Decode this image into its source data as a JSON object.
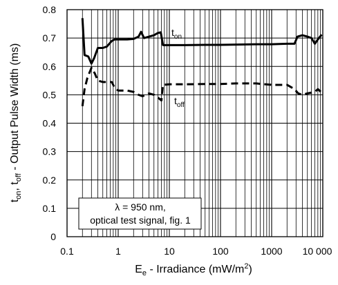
{
  "chart_data": {
    "type": "line",
    "xlabel": {
      "main": "E",
      "sub": "e",
      "rest": " - Irradiance (mW/m",
      "sup": "2",
      "end": ")"
    },
    "ylabel": {
      "t1": "t",
      "s1": "on",
      "mid": ", t",
      "s2": "off",
      "rest": " - Output Pulse Width (ms)"
    },
    "x_scale": "log",
    "xlim": [
      0.1,
      10000
    ],
    "ylim": [
      0,
      0.8
    ],
    "x_ticks": [
      0.1,
      1,
      10,
      100,
      1000,
      10000
    ],
    "x_tick_labels": [
      "0.1",
      "1",
      "10",
      "100",
      "1000",
      "10 000"
    ],
    "y_ticks": [
      0,
      0.1,
      0.2,
      0.3,
      0.4,
      0.5,
      0.6,
      0.7,
      0.8
    ],
    "y_tick_labels": [
      "0",
      "0.1",
      "0.2",
      "0.3",
      "0.4",
      "0.5",
      "0.6",
      "0.7",
      "0.8"
    ],
    "grid": true,
    "annotation": {
      "line1": "λ = 950 nm,",
      "line2": "optical test signal, fig. 1"
    },
    "series": [
      {
        "name": "t_on",
        "label_main": "t",
        "label_sub": "on",
        "style": "solid",
        "points": [
          [
            0.2,
            0.77
          ],
          [
            0.22,
            0.64
          ],
          [
            0.26,
            0.635
          ],
          [
            0.3,
            0.61
          ],
          [
            0.34,
            0.63
          ],
          [
            0.4,
            0.665
          ],
          [
            0.5,
            0.665
          ],
          [
            0.6,
            0.67
          ],
          [
            0.75,
            0.69
          ],
          [
            0.85,
            0.695
          ],
          [
            1.0,
            0.695
          ],
          [
            1.5,
            0.695
          ],
          [
            2.0,
            0.697
          ],
          [
            2.5,
            0.705
          ],
          [
            2.8,
            0.722
          ],
          [
            3.2,
            0.7
          ],
          [
            4.0,
            0.705
          ],
          [
            5.0,
            0.71
          ],
          [
            6.0,
            0.718
          ],
          [
            6.8,
            0.72
          ],
          [
            7.5,
            0.675
          ],
          [
            10,
            0.675
          ],
          [
            20,
            0.675
          ],
          [
            50,
            0.676
          ],
          [
            100,
            0.676
          ],
          [
            200,
            0.677
          ],
          [
            500,
            0.678
          ],
          [
            1000,
            0.678
          ],
          [
            2000,
            0.68
          ],
          [
            2800,
            0.68
          ],
          [
            3200,
            0.705
          ],
          [
            4000,
            0.71
          ],
          [
            5000,
            0.705
          ],
          [
            6000,
            0.7
          ],
          [
            7000,
            0.68
          ],
          [
            8000,
            0.695
          ],
          [
            9500,
            0.712
          ]
        ]
      },
      {
        "name": "t_off",
        "label_main": "t",
        "label_sub": "off",
        "style": "dashed",
        "points": [
          [
            0.2,
            0.46
          ],
          [
            0.22,
            0.52
          ],
          [
            0.25,
            0.56
          ],
          [
            0.3,
            0.595
          ],
          [
            0.35,
            0.575
          ],
          [
            0.4,
            0.55
          ],
          [
            0.5,
            0.545
          ],
          [
            0.6,
            0.545
          ],
          [
            0.75,
            0.545
          ],
          [
            0.85,
            0.525
          ],
          [
            1.0,
            0.515
          ],
          [
            1.5,
            0.515
          ],
          [
            2.0,
            0.51
          ],
          [
            2.5,
            0.5
          ],
          [
            3.0,
            0.495
          ],
          [
            4.0,
            0.505
          ],
          [
            5.0,
            0.5
          ],
          [
            6.0,
            0.49
          ],
          [
            7.0,
            0.48
          ],
          [
            7.5,
            0.535
          ],
          [
            10,
            0.537
          ],
          [
            20,
            0.537
          ],
          [
            50,
            0.538
          ],
          [
            100,
            0.538
          ],
          [
            200,
            0.54
          ],
          [
            500,
            0.54
          ],
          [
            1000,
            0.535
          ],
          [
            2000,
            0.535
          ],
          [
            2800,
            0.52
          ],
          [
            3300,
            0.505
          ],
          [
            4000,
            0.5
          ],
          [
            5000,
            0.505
          ],
          [
            7000,
            0.51
          ],
          [
            8000,
            0.52
          ],
          [
            9500,
            0.508
          ]
        ]
      }
    ]
  }
}
